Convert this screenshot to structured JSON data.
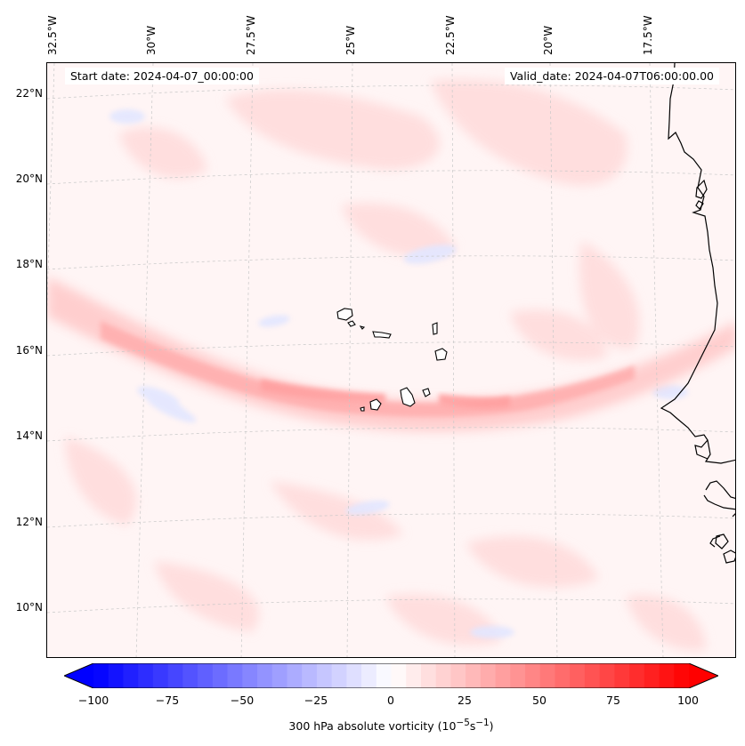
{
  "map": {
    "lon_labels": [
      "32.5°W",
      "30°W",
      "27.5°W",
      "25°W",
      "22.5°W",
      "20°W",
      "17.5°W"
    ],
    "lat_labels": [
      "22°N",
      "20°N",
      "18°N",
      "16°N",
      "14°N",
      "12°N",
      "10°N"
    ],
    "start_date": "Start date: 2024-04-07_00:00:00",
    "valid_date": "Valid_date: 2024-04-07T06:00:00.00",
    "lon_range": [
      -33,
      -15.5
    ],
    "lat_range": [
      9,
      22.8
    ],
    "field": "300 hPa absolute vorticity",
    "features": [
      "cape-verde-islands",
      "west-africa-coastline",
      "vorticity-band"
    ]
  },
  "colorbar": {
    "ticks": [
      "−100",
      "−75",
      "−50",
      "−25",
      "0",
      "25",
      "50",
      "75",
      "100"
    ],
    "min": -100,
    "max": 100,
    "colormap": "bwr",
    "extend": "both",
    "label_prefix": "300 hPa absolute vorticity (10",
    "label_exp1": "−5",
    "label_mid": "s",
    "label_exp2": "−1",
    "label_suffix": ")"
  },
  "colors": {
    "negative": "#0000ff",
    "zero": "#ffffff",
    "positive": "#ff0000",
    "coast": "#000000"
  }
}
